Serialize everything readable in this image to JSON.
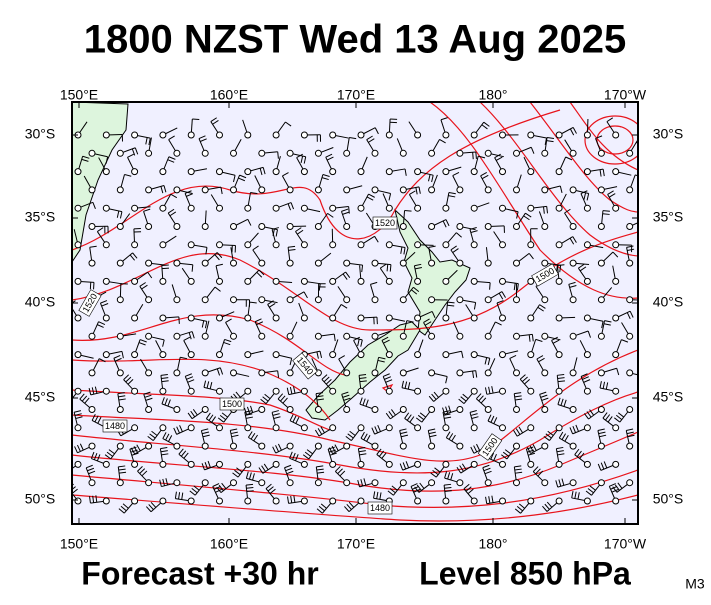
{
  "title": "1800 NZST Wed 13 Aug 2025",
  "axes": {
    "lon": [
      "150°E",
      "160°E",
      "170°E",
      "180°",
      "170°W"
    ],
    "lat": [
      "30°S",
      "35°S",
      "40°S",
      "45°S",
      "50°S"
    ]
  },
  "contours": [
    "1520",
    "1500",
    "1520",
    "1540",
    "1500",
    "1480",
    "1500",
    "1480"
  ],
  "footer": {
    "forecast": "Forecast +30 hr",
    "level": "Level 850 hPa",
    "code": "M3"
  }
}
